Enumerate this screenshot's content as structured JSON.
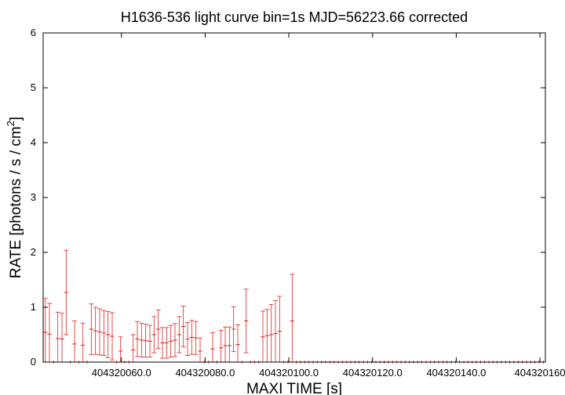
{
  "chart_data": {
    "type": "line",
    "title": "H1636-536 light curve bin=1s MJD=56223.66 corrected",
    "xlabel": "MAXI TIME [s]",
    "ylabel_main": "RATE [photons / s / cm",
    "ylabel_sup": "2",
    "ylabel_close": "]",
    "xlim": [
      404320041.3,
      404320161.3
    ],
    "ylim": [
      0,
      6
    ],
    "xticks": [
      {
        "value": 404320060.0,
        "label": "404320060.0"
      },
      {
        "value": 404320080.0,
        "label": "404320080.0"
      },
      {
        "value": 404320100.0,
        "label": "404320100.0"
      },
      {
        "value": 404320120.0,
        "label": "404320120.0"
      },
      {
        "value": 404320140.0,
        "label": "404320140.0"
      },
      {
        "value": 404320160.0,
        "label": "404320160"
      }
    ],
    "yticks": [
      {
        "value": 0,
        "label": "0"
      },
      {
        "value": 1,
        "label": "1"
      },
      {
        "value": 2,
        "label": "2"
      },
      {
        "value": 3,
        "label": "3"
      },
      {
        "value": 4,
        "label": "4"
      },
      {
        "value": 5,
        "label": "5"
      },
      {
        "value": 6,
        "label": "6"
      }
    ],
    "grid": false,
    "series_color": "#e02020",
    "axis_color": "#000000",
    "t0": 404320041.3,
    "rate": [
      0.54,
      0.51,
      0.0,
      0.43,
      0.42,
      1.27,
      0.0,
      0.33,
      0.0,
      0.31,
      0.0,
      0.6,
      0.57,
      0.55,
      0.53,
      0.5,
      0.47,
      0.0,
      0.2,
      0.0,
      0.0,
      0.22,
      0.42,
      0.4,
      0.39,
      0.38,
      0.5,
      0.6,
      0.35,
      0.35,
      0.38,
      0.4,
      0.5,
      0.65,
      0.42,
      0.45,
      0.44,
      0.2,
      0.0,
      0.0,
      0.24,
      0.0,
      0.26,
      0.3,
      0.3,
      0.6,
      0.32,
      0.0,
      0.75,
      0.0,
      0.0,
      0.0,
      0.46,
      0.48,
      0.5,
      0.52,
      0.56,
      0.0,
      0.0,
      0.75,
      0.0,
      0.0,
      0.0,
      0.0,
      0.0,
      0.0,
      0.0,
      0.0,
      0.0,
      0.0,
      0.0,
      0.0,
      0.0,
      0.0,
      0.0,
      0.0,
      0.0,
      0.0,
      0.0,
      0.0,
      0.0,
      0.0,
      0.0,
      0.0,
      0.0,
      0.0,
      0.0,
      0.0,
      0.0,
      0.0,
      0.0,
      0.0,
      0.0,
      0.0,
      0.0,
      0.0,
      0.0,
      0.0,
      0.0,
      0.0,
      0.0,
      0.0,
      0.0,
      0.0,
      0.0,
      0.0,
      0.0,
      0.0,
      0.0,
      0.0,
      0.0,
      0.0,
      0.0,
      0.0,
      0.0,
      0.0,
      0.0,
      0.0,
      0.0,
      0.0
    ],
    "err": [
      0.62,
      0.56,
      0.0,
      0.48,
      0.47,
      0.77,
      0.0,
      0.42,
      0.0,
      0.4,
      0.0,
      0.46,
      0.43,
      0.42,
      0.41,
      0.42,
      0.43,
      0.0,
      0.26,
      0.0,
      0.0,
      0.28,
      0.32,
      0.31,
      0.3,
      0.29,
      0.33,
      0.35,
      0.28,
      0.28,
      0.29,
      0.3,
      0.33,
      0.37,
      0.3,
      0.31,
      0.3,
      0.24,
      0.0,
      0.0,
      0.3,
      0.0,
      0.32,
      0.34,
      0.34,
      0.41,
      0.36,
      0.0,
      0.58,
      0.0,
      0.0,
      0.0,
      0.47,
      0.48,
      0.55,
      0.6,
      0.64,
      0.0,
      0.0,
      0.85,
      0.0,
      0.0,
      0.0,
      0.0,
      0.0,
      0.0,
      0.0,
      0.0,
      0.0,
      0.0,
      0.0,
      0.0,
      0.0,
      0.0,
      0.0,
      0.0,
      0.0,
      0.0,
      0.0,
      0.0,
      0.0,
      0.0,
      0.0,
      0.0,
      0.0,
      0.0,
      0.0,
      0.0,
      0.0,
      0.0,
      0.0,
      0.0,
      0.0,
      0.0,
      0.0,
      0.0,
      0.0,
      0.0,
      0.0,
      0.0,
      0.0,
      0.0,
      0.0,
      0.0,
      0.0,
      0.0,
      0.0,
      0.0,
      0.0,
      0.0,
      0.0,
      0.0,
      0.0,
      0.0,
      0.0,
      0.0,
      0.0,
      0.0,
      0.0,
      0.0,
      0.0
    ]
  }
}
